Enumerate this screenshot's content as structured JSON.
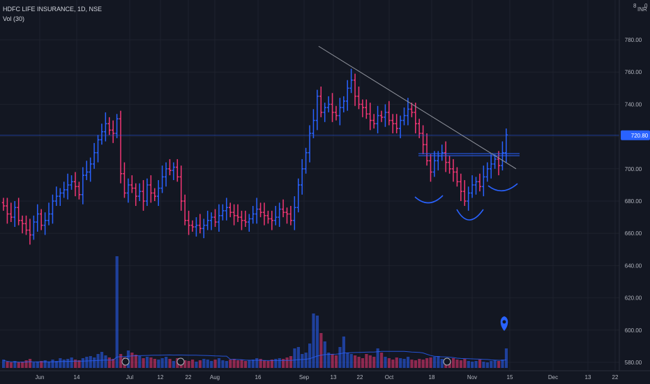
{
  "header": {
    "symbol_line": "HDFC LIFE INSURANCE, 1D, NSE",
    "volume_line": "Vol (30)"
  },
  "price_axis": {
    "currency": "INR",
    "top_marker": "8",
    "top_zero": "0",
    "last_price_label": "720.80",
    "tick_labels": [
      "780.00",
      "760.00",
      "740.00",
      "720.00",
      "700.00",
      "680.00",
      "660.00",
      "640.00",
      "620.00",
      "600.00",
      "580.00"
    ]
  },
  "time_axis": {
    "tick_labels": [
      "Jun",
      "14",
      "Jul",
      "12",
      "22",
      "Aug",
      "16",
      "Sep",
      "13",
      "22",
      "Oct",
      "18",
      "Nov",
      "15",
      "Dec",
      "13",
      "22"
    ]
  },
  "colors": {
    "background": "#131722",
    "up": "#2962ff",
    "down": "#f23674",
    "up_volume": "#2962ff",
    "down_volume": "#f23674",
    "text": "#b2b5be",
    "grid": "#1e222d",
    "trendline": "#9598a1",
    "highlight": "#2962ff"
  },
  "chart_data": {
    "type": "ohlc",
    "title": "HDFC LIFE INSURANCE, 1D, NSE",
    "ylim": [
      575,
      790
    ],
    "y_scale": "linear",
    "grid": true,
    "x_ticks": [
      "Jun",
      "14",
      "Jul",
      "12",
      "22",
      "Aug",
      "16",
      "Sep",
      "13",
      "22",
      "Oct",
      "18",
      "Nov",
      "15",
      "Dec",
      "13",
      "22"
    ],
    "closes": [
      677,
      672,
      670,
      676,
      668,
      666,
      662,
      659,
      667,
      672,
      665,
      668,
      672,
      680,
      683,
      685,
      687,
      690,
      692,
      689,
      684,
      696,
      698,
      703,
      710,
      718,
      723,
      728,
      724,
      722,
      731,
      697,
      685,
      690,
      688,
      683,
      686,
      680,
      690,
      685,
      683,
      688,
      695,
      700,
      699,
      701,
      695,
      680,
      668,
      665,
      664,
      665,
      663,
      665,
      668,
      670,
      667,
      671,
      674,
      676,
      673,
      671,
      670,
      668,
      667,
      669,
      672,
      675,
      673,
      671,
      669,
      668,
      670,
      675,
      673,
      672,
      668,
      676,
      690,
      700,
      710,
      722,
      730,
      745,
      735,
      738,
      740,
      735,
      733,
      738,
      742,
      750,
      755,
      745,
      740,
      738,
      734,
      730,
      728,
      733,
      732,
      735,
      730,
      728,
      725,
      730,
      733,
      737,
      735,
      728,
      722,
      715,
      705,
      698,
      705,
      708,
      710,
      704,
      700,
      698,
      692,
      686,
      680,
      685,
      690,
      692,
      689,
      695,
      700,
      703,
      706,
      702,
      710,
      721
    ],
    "volume": [
      12,
      9,
      8,
      10,
      8,
      9,
      11,
      13,
      8,
      9,
      10,
      11,
      9,
      12,
      10,
      14,
      12,
      13,
      15,
      12,
      11,
      14,
      16,
      17,
      15,
      20,
      23,
      18,
      15,
      13,
      160,
      20,
      15,
      25,
      22,
      19,
      17,
      14,
      16,
      15,
      13,
      12,
      14,
      16,
      13,
      10,
      14,
      12,
      11,
      10,
      12,
      9,
      11,
      13,
      12,
      10,
      12,
      14,
      11,
      10,
      12,
      13,
      11,
      12,
      10,
      11,
      12,
      14,
      13,
      11,
      10,
      12,
      13,
      14,
      13,
      15,
      17,
      28,
      30,
      20,
      22,
      35,
      78,
      75,
      50,
      38,
      22,
      20,
      18,
      30,
      45,
      22,
      20,
      18,
      16,
      14,
      20,
      18,
      16,
      28,
      22,
      16,
      14,
      12,
      15,
      14,
      13,
      16,
      12,
      11,
      13,
      12,
      14,
      15,
      16,
      17,
      13,
      12,
      10,
      14,
      12,
      11,
      13,
      10,
      9,
      10,
      12,
      9,
      8,
      10,
      11,
      10,
      12,
      28
    ],
    "volume_ma_note": "Vol (30)",
    "trendline": {
      "from": {
        "index": 83,
        "price": 776
      },
      "to": {
        "index": 134,
        "price": 700
      }
    },
    "horizontal_levels": [
      720.8,
      709
    ],
    "neckline_level": 709
  }
}
